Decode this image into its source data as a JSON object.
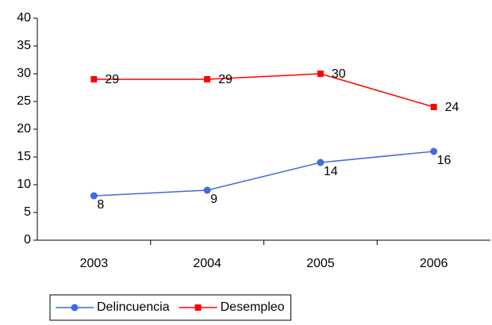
{
  "chart_data": {
    "type": "line",
    "categories": [
      "2003",
      "2004",
      "2005",
      "2006"
    ],
    "series": [
      {
        "name": "Delincuencia",
        "color": "#4169e1",
        "marker": "circle",
        "values": [
          8,
          9,
          14,
          16
        ]
      },
      {
        "name": "Desempleo",
        "color": "#ff0000",
        "marker": "square",
        "values": [
          29,
          29,
          30,
          24
        ]
      }
    ],
    "ylim": [
      0,
      40
    ],
    "yticks": [
      0,
      5,
      10,
      15,
      20,
      25,
      30,
      35,
      40
    ],
    "grid": false,
    "legend": "bottom"
  }
}
